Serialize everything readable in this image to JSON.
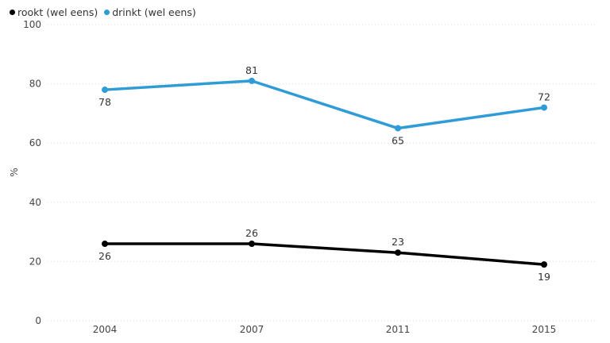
{
  "chart_data": {
    "type": "line",
    "x": [
      "2004",
      "2007",
      "2011",
      "2015"
    ],
    "ylabel": "%",
    "ylim": [
      0,
      100
    ],
    "yticks": [
      0,
      20,
      40,
      60,
      80,
      100
    ],
    "grid": true,
    "legend_position": "top-left",
    "series": [
      {
        "name": "rookt (wel eens)",
        "color": "#000000",
        "values": [
          26,
          26,
          23,
          19
        ],
        "label_pos": [
          "below",
          "above",
          "above",
          "below"
        ]
      },
      {
        "name": "drinkt (wel eens)",
        "color": "#2f9bd7",
        "values": [
          78,
          81,
          65,
          72
        ],
        "label_pos": [
          "below",
          "above",
          "below",
          "above"
        ]
      }
    ]
  }
}
